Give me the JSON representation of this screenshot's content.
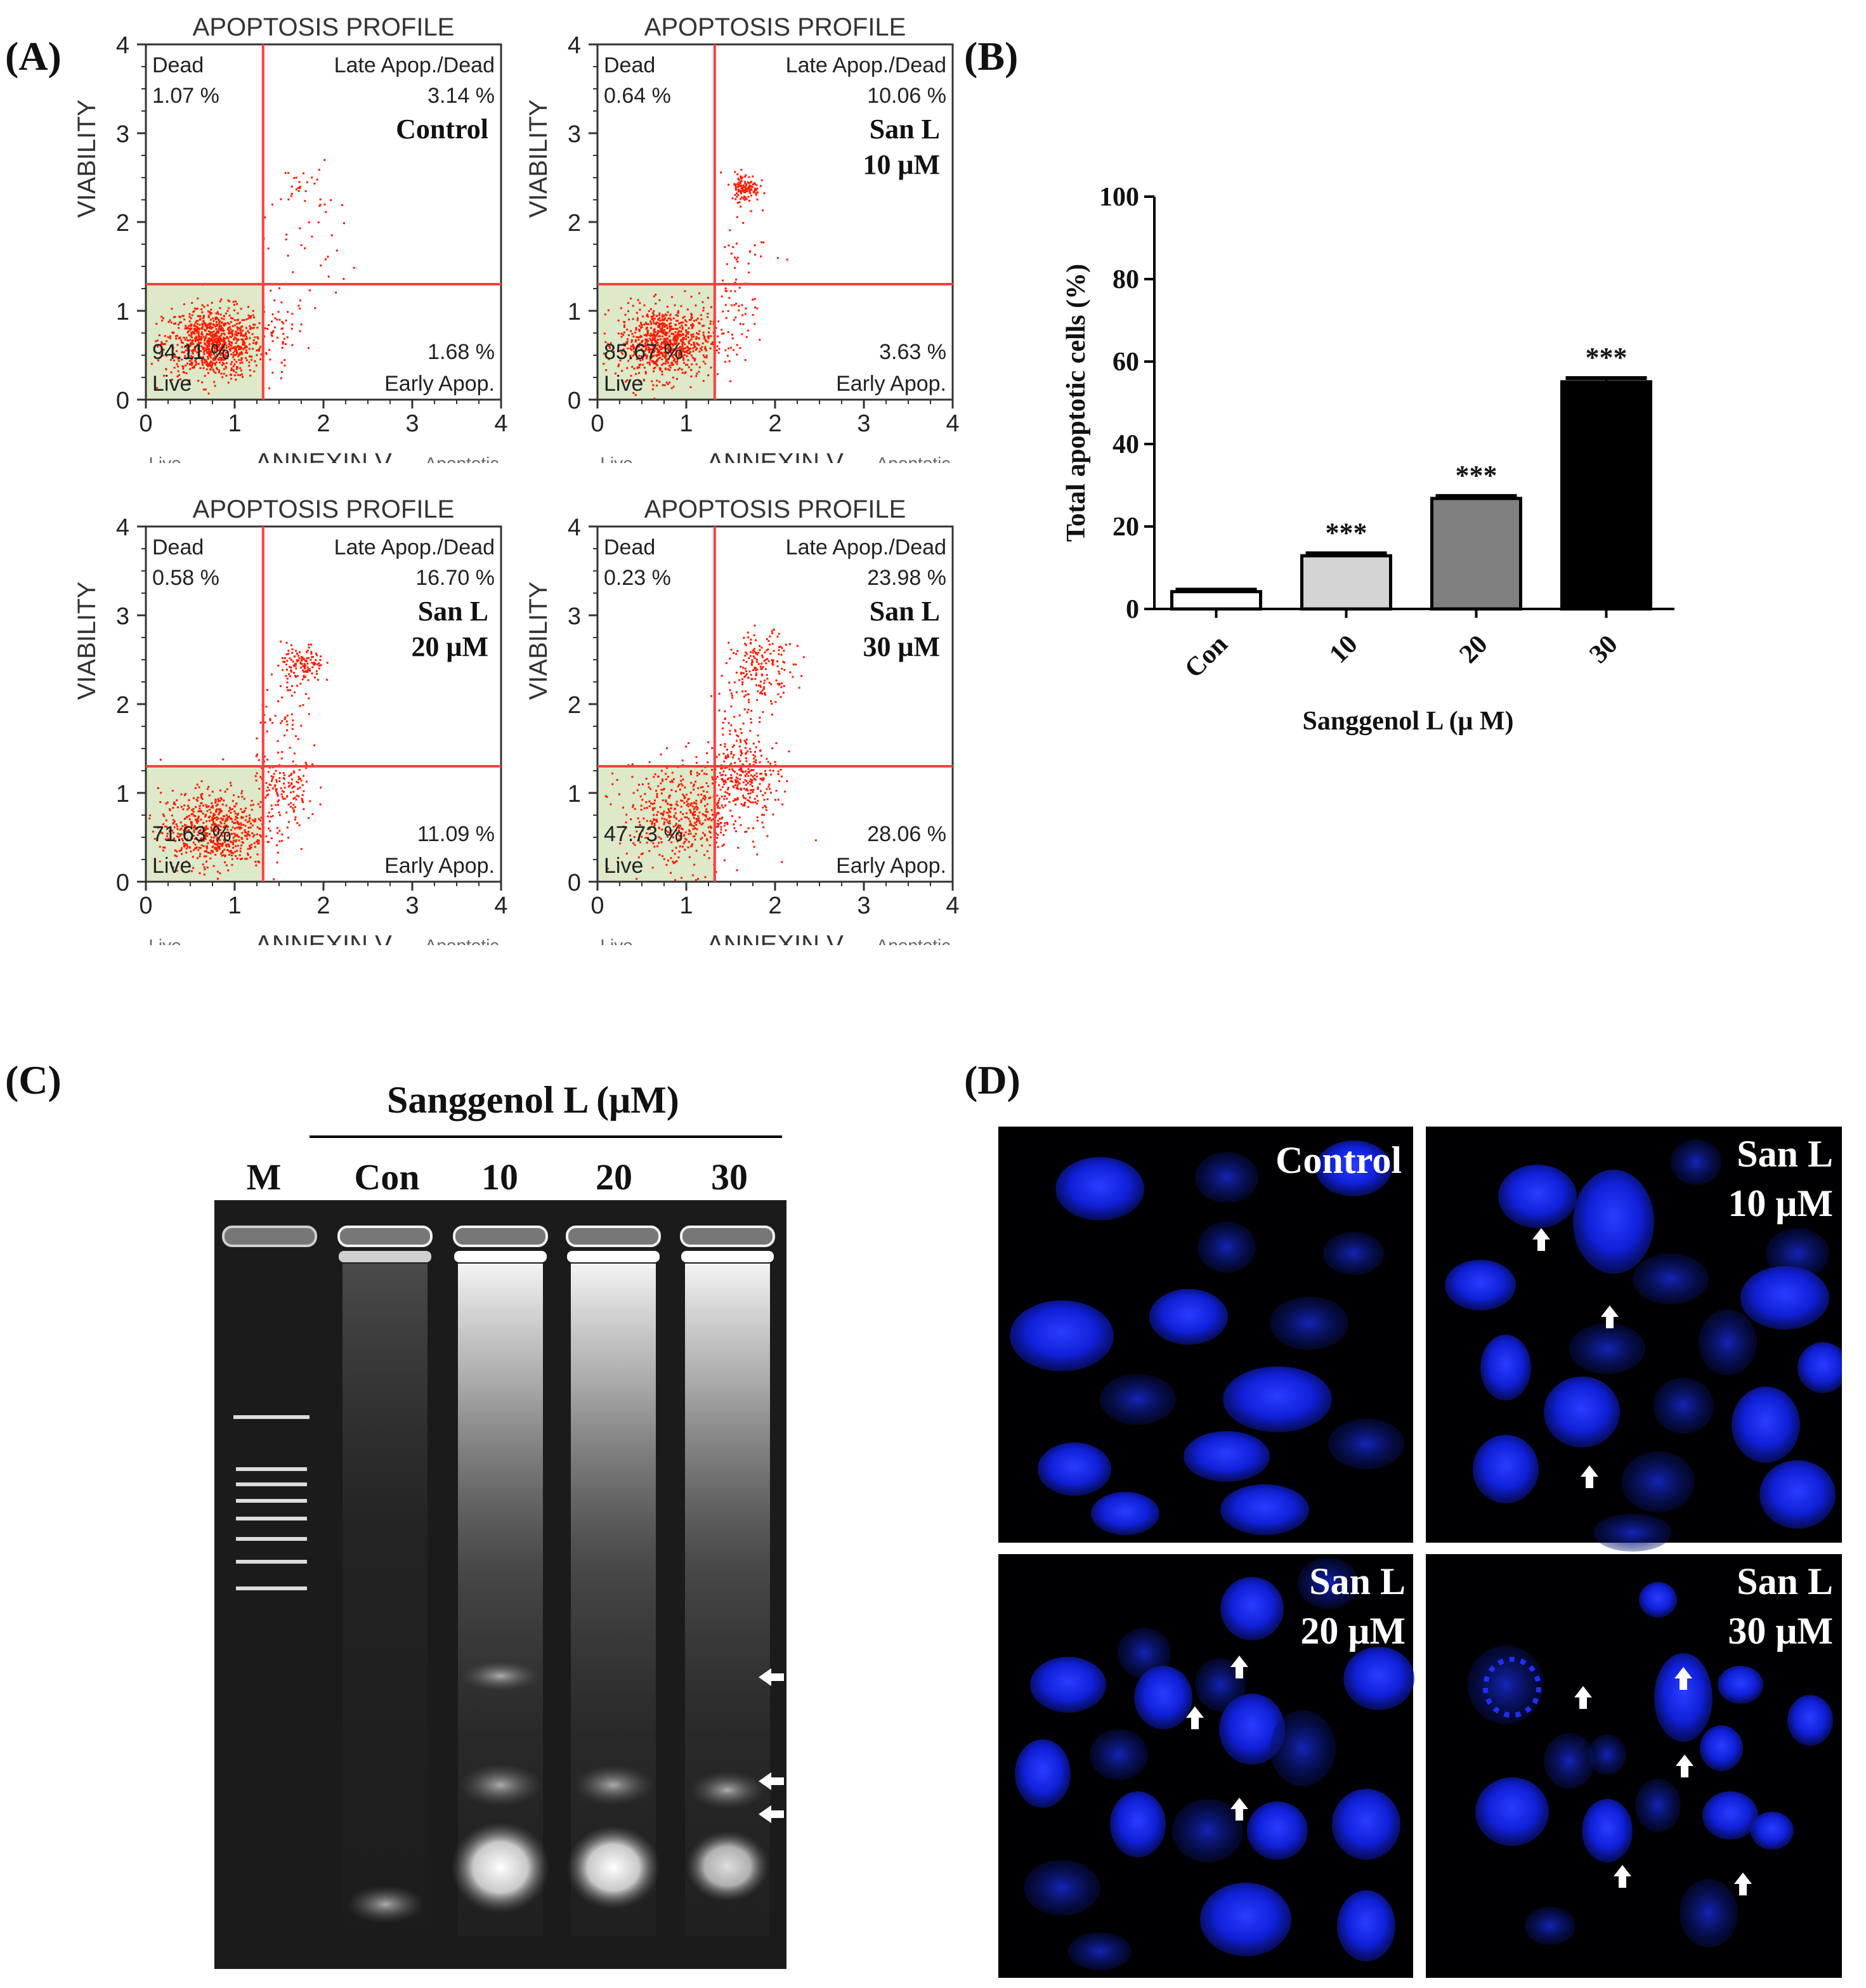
{
  "panels": {
    "A": "(A)",
    "B": "(B)",
    "C": "(C)",
    "D": "(D)"
  },
  "flow_plots": [
    {
      "title": "APOPTOSIS PROFILE",
      "dead_label": "Dead",
      "dead_pct": "1.07 %",
      "late_label": "Late Apop./Dead",
      "late_pct": "3.14 %",
      "treatment_line1": "Control",
      "treatment_line2": "",
      "live_pct": "94.11 %",
      "live_label": "Live",
      "early_pct": "1.68 %",
      "early_label": "Early Apop.",
      "ylabel": "VIABILITY",
      "xlabel": "ANNEXIN V",
      "xlabel_left": "Live",
      "xlabel_right": "Apoptotic",
      "ticks": [
        "0",
        "1",
        "2",
        "3",
        "4"
      ]
    },
    {
      "title": "APOPTOSIS PROFILE",
      "dead_label": "Dead",
      "dead_pct": "0.64 %",
      "late_label": "Late Apop./Dead",
      "late_pct": "10.06 %",
      "treatment_line1": "San L",
      "treatment_line2": "10 μM",
      "live_pct": "85.67 %",
      "live_label": "Live",
      "early_pct": "3.63 %",
      "early_label": "Early Apop.",
      "ylabel": "VIABILITY",
      "xlabel": "ANNEXIN V",
      "xlabel_left": "Live",
      "xlabel_right": "Apoptotic",
      "ticks": [
        "0",
        "1",
        "2",
        "3",
        "4"
      ]
    },
    {
      "title": "APOPTOSIS PROFILE",
      "dead_label": "Dead",
      "dead_pct": "0.58 %",
      "late_label": "Late Apop./Dead",
      "late_pct": "16.70 %",
      "treatment_line1": "San L",
      "treatment_line2": "20 μM",
      "live_pct": "71.63 %",
      "live_label": "Live",
      "early_pct": "11.09 %",
      "early_label": "Early Apop.",
      "ylabel": "VIABILITY",
      "xlabel": "ANNEXIN V",
      "xlabel_left": "Live",
      "xlabel_right": "Apoptotic",
      "ticks": [
        "0",
        "1",
        "2",
        "3",
        "4"
      ]
    },
    {
      "title": "APOPTOSIS PROFILE",
      "dead_label": "Dead",
      "dead_pct": "0.23 %",
      "late_label": "Late Apop./Dead",
      "late_pct": "23.98 %",
      "treatment_line1": "San L",
      "treatment_line2": "30 μM",
      "live_pct": "47.73 %",
      "live_label": "Live",
      "early_pct": "28.06 %",
      "early_label": "Early Apop.",
      "ylabel": "VIABILITY",
      "xlabel": "ANNEXIN V",
      "xlabel_left": "Live",
      "xlabel_right": "Apoptotic",
      "ticks": [
        "0",
        "1",
        "2",
        "3",
        "4"
      ]
    }
  ],
  "chart_data": {
    "type": "bar",
    "title": "",
    "xlabel": "Sanggenol L (μ M)",
    "ylabel": "Total apoptotic cells (%)",
    "categories": [
      "Con",
      "10",
      "20",
      "30"
    ],
    "values": [
      4.2,
      12.9,
      26.8,
      55.1
    ],
    "errors": [
      0.5,
      0.6,
      0.6,
      0.9
    ],
    "significance": [
      "",
      "***",
      "***",
      "***"
    ],
    "bar_colors": [
      "#ffffff",
      "#d4d4d4",
      "#808080",
      "#000000"
    ],
    "ylim": [
      0,
      100
    ],
    "yticks": [
      "0",
      "20",
      "40",
      "60",
      "80",
      "100"
    ],
    "grid": false
  },
  "gel": {
    "title": "Sanggenol L (μM)",
    "lanes": [
      "M",
      "Con",
      "10",
      "20",
      "30"
    ],
    "fragment_arrows": 3
  },
  "microscopy": [
    {
      "line1": "Control",
      "line2": ""
    },
    {
      "line1": "San L",
      "line2": "10 μM"
    },
    {
      "line1": "San L",
      "line2": "20 μM"
    },
    {
      "line1": "San L",
      "line2": "30 μM"
    }
  ]
}
